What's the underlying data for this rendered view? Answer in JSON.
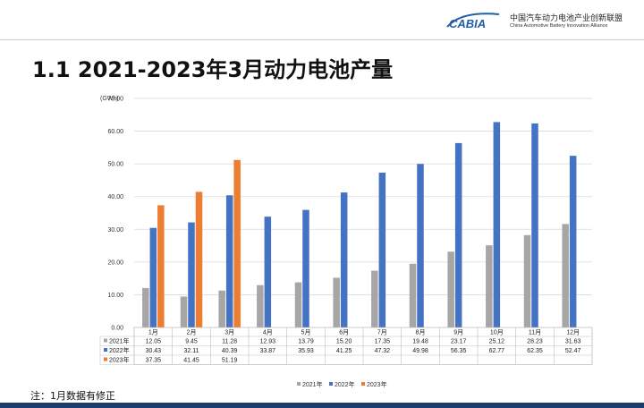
{
  "header": {
    "logo_text": "CABIA",
    "org_cn": "中国汽车动力电池产业创新联盟",
    "org_en": "China Automotive Battery Innovation Alliance"
  },
  "page_title": "1.1  2021-2023年3月动力电池产量",
  "note": "注：1月数据有修正",
  "colors": {
    "s2021": "#a6a6a6",
    "s2022": "#4472c4",
    "s2023": "#ed7d31"
  },
  "chart_data": {
    "type": "bar",
    "unit_label": "(GWh)",
    "ylim": [
      0,
      70
    ],
    "ytick_step": 10,
    "ytick_labels": [
      "0.00",
      "10.00",
      "20.00",
      "30.00",
      "40.00",
      "50.00",
      "60.00",
      "70.00"
    ],
    "categories": [
      "1月",
      "2月",
      "3月",
      "4月",
      "5月",
      "6月",
      "7月",
      "8月",
      "9月",
      "10月",
      "11月",
      "12月"
    ],
    "series": [
      {
        "name": "2021年",
        "values": [
          12.05,
          9.45,
          11.28,
          12.93,
          13.79,
          15.2,
          17.35,
          19.48,
          23.17,
          25.12,
          28.23,
          31.63
        ],
        "labels": [
          "12.05",
          "9.45",
          "11.28",
          "12.93",
          "13.79",
          "15.20",
          "17.35",
          "19.48",
          "23.17",
          "25.12",
          "28.23",
          "31.63"
        ]
      },
      {
        "name": "2022年",
        "values": [
          30.43,
          32.11,
          40.39,
          33.87,
          35.93,
          41.25,
          47.32,
          49.98,
          56.35,
          62.77,
          62.35,
          52.47
        ],
        "labels": [
          "30.43",
          "32.11",
          "40.39",
          "33.87",
          "35.93",
          "41.25",
          "47.32",
          "49.98",
          "56.35",
          "62.77",
          "62.35",
          "52.47"
        ]
      },
      {
        "name": "2023年",
        "values": [
          37.35,
          41.45,
          51.19,
          null,
          null,
          null,
          null,
          null,
          null,
          null,
          null,
          null
        ],
        "labels": [
          "37.35",
          "41.45",
          "51.19",
          "",
          "",
          "",
          "",
          "",
          "",
          "",
          "",
          ""
        ]
      }
    ],
    "grid": true,
    "legend": "bottom"
  }
}
